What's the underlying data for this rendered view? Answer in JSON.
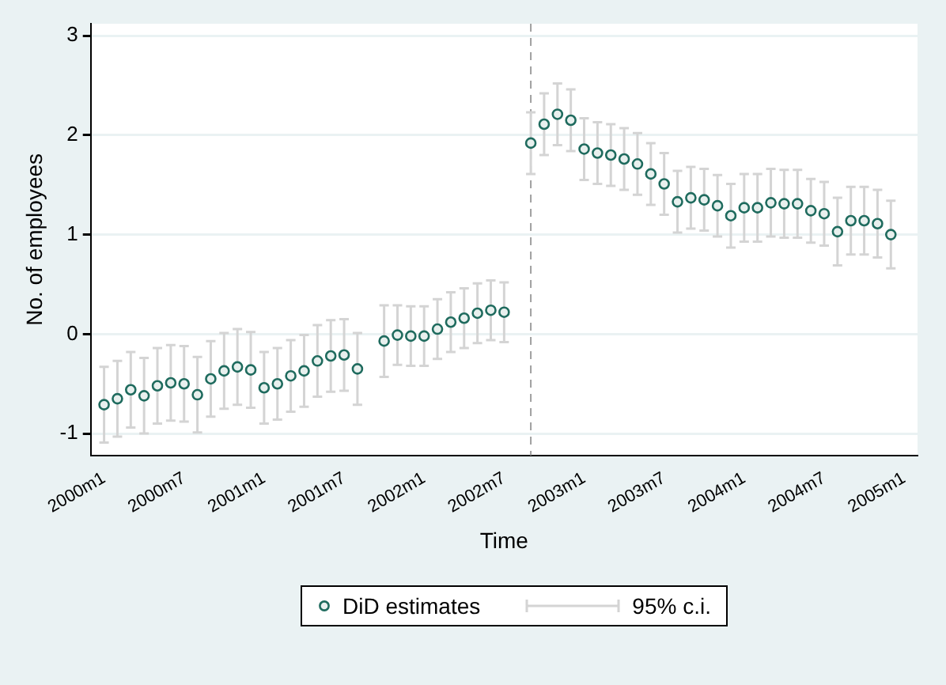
{
  "chart_data": {
    "type": "scatter",
    "xlabel": "Time",
    "ylabel": "No. of employees",
    "x": [
      "2000-01",
      "2000-02",
      "2000-03",
      "2000-04",
      "2000-05",
      "2000-06",
      "2000-07",
      "2000-08",
      "2000-09",
      "2000-10",
      "2000-11",
      "2000-12",
      "2001-01",
      "2001-02",
      "2001-03",
      "2001-04",
      "2001-05",
      "2001-06",
      "2001-07",
      "2001-08",
      "2001-10",
      "2001-11",
      "2001-12",
      "2002-01",
      "2002-02",
      "2002-03",
      "2002-04",
      "2002-05",
      "2002-06",
      "2002-07",
      "2002-09",
      "2002-10",
      "2002-11",
      "2002-12",
      "2003-01",
      "2003-02",
      "2003-03",
      "2003-04",
      "2003-05",
      "2003-06",
      "2003-07",
      "2003-08",
      "2003-09",
      "2003-10",
      "2003-11",
      "2003-12",
      "2004-01",
      "2004-02",
      "2004-03",
      "2004-04",
      "2004-05",
      "2004-06",
      "2004-07",
      "2004-08",
      "2004-09",
      "2004-10",
      "2004-11",
      "2004-12"
    ],
    "series": [
      {
        "name": "DiD estimates",
        "color": "#1f6b5e",
        "values": [
          -0.71,
          -0.65,
          -0.56,
          -0.62,
          -0.52,
          -0.49,
          -0.5,
          -0.61,
          -0.45,
          -0.37,
          -0.33,
          -0.36,
          -0.54,
          -0.5,
          -0.42,
          -0.37,
          -0.27,
          -0.22,
          -0.21,
          -0.35,
          -0.07,
          -0.01,
          -0.02,
          -0.02,
          0.05,
          0.12,
          0.16,
          0.21,
          0.24,
          0.22,
          1.92,
          2.11,
          2.21,
          2.15,
          1.86,
          1.82,
          1.8,
          1.76,
          1.71,
          1.61,
          1.51,
          1.33,
          1.37,
          1.35,
          1.29,
          1.19,
          1.27,
          1.27,
          1.32,
          1.31,
          1.31,
          1.24,
          1.21,
          1.03,
          1.14,
          1.14,
          1.11,
          1.0
        ],
        "errors": [
          0.38,
          0.38,
          0.38,
          0.38,
          0.38,
          0.38,
          0.38,
          0.38,
          0.38,
          0.38,
          0.38,
          0.38,
          0.36,
          0.36,
          0.36,
          0.36,
          0.36,
          0.36,
          0.36,
          0.36,
          0.36,
          0.3,
          0.3,
          0.3,
          0.3,
          0.3,
          0.3,
          0.3,
          0.3,
          0.3,
          0.31,
          0.31,
          0.31,
          0.31,
          0.31,
          0.31,
          0.31,
          0.31,
          0.31,
          0.31,
          0.31,
          0.31,
          0.31,
          0.31,
          0.31,
          0.32,
          0.34,
          0.34,
          0.34,
          0.34,
          0.34,
          0.32,
          0.32,
          0.34,
          0.34,
          0.34,
          0.34,
          0.34
        ]
      }
    ],
    "xlim": [
      "1999-12",
      "2005-02"
    ],
    "xticks": [
      {
        "value": "2000-01",
        "label": "2000m1"
      },
      {
        "value": "2000-07",
        "label": "2000m7"
      },
      {
        "value": "2001-01",
        "label": "2001m1"
      },
      {
        "value": "2001-07",
        "label": "2001m7"
      },
      {
        "value": "2002-01",
        "label": "2002m1"
      },
      {
        "value": "2002-07",
        "label": "2002m7"
      },
      {
        "value": "2003-01",
        "label": "2003m1"
      },
      {
        "value": "2003-07",
        "label": "2003m7"
      },
      {
        "value": "2004-01",
        "label": "2004m1"
      },
      {
        "value": "2004-07",
        "label": "2004m7"
      },
      {
        "value": "2005-01",
        "label": "2005m1"
      }
    ],
    "ylim": [
      -1.22,
      3.12
    ],
    "yticks": [
      -1,
      0,
      1,
      2,
      3
    ],
    "ref_lines": [
      {
        "axis": "x",
        "value": "2002-09",
        "color": "#a0a0a0",
        "line_style": "dashed"
      }
    ],
    "grid": "y",
    "marker": "circle",
    "legend": "bottom",
    "annotations": [
      "95% c.i."
    ]
  }
}
